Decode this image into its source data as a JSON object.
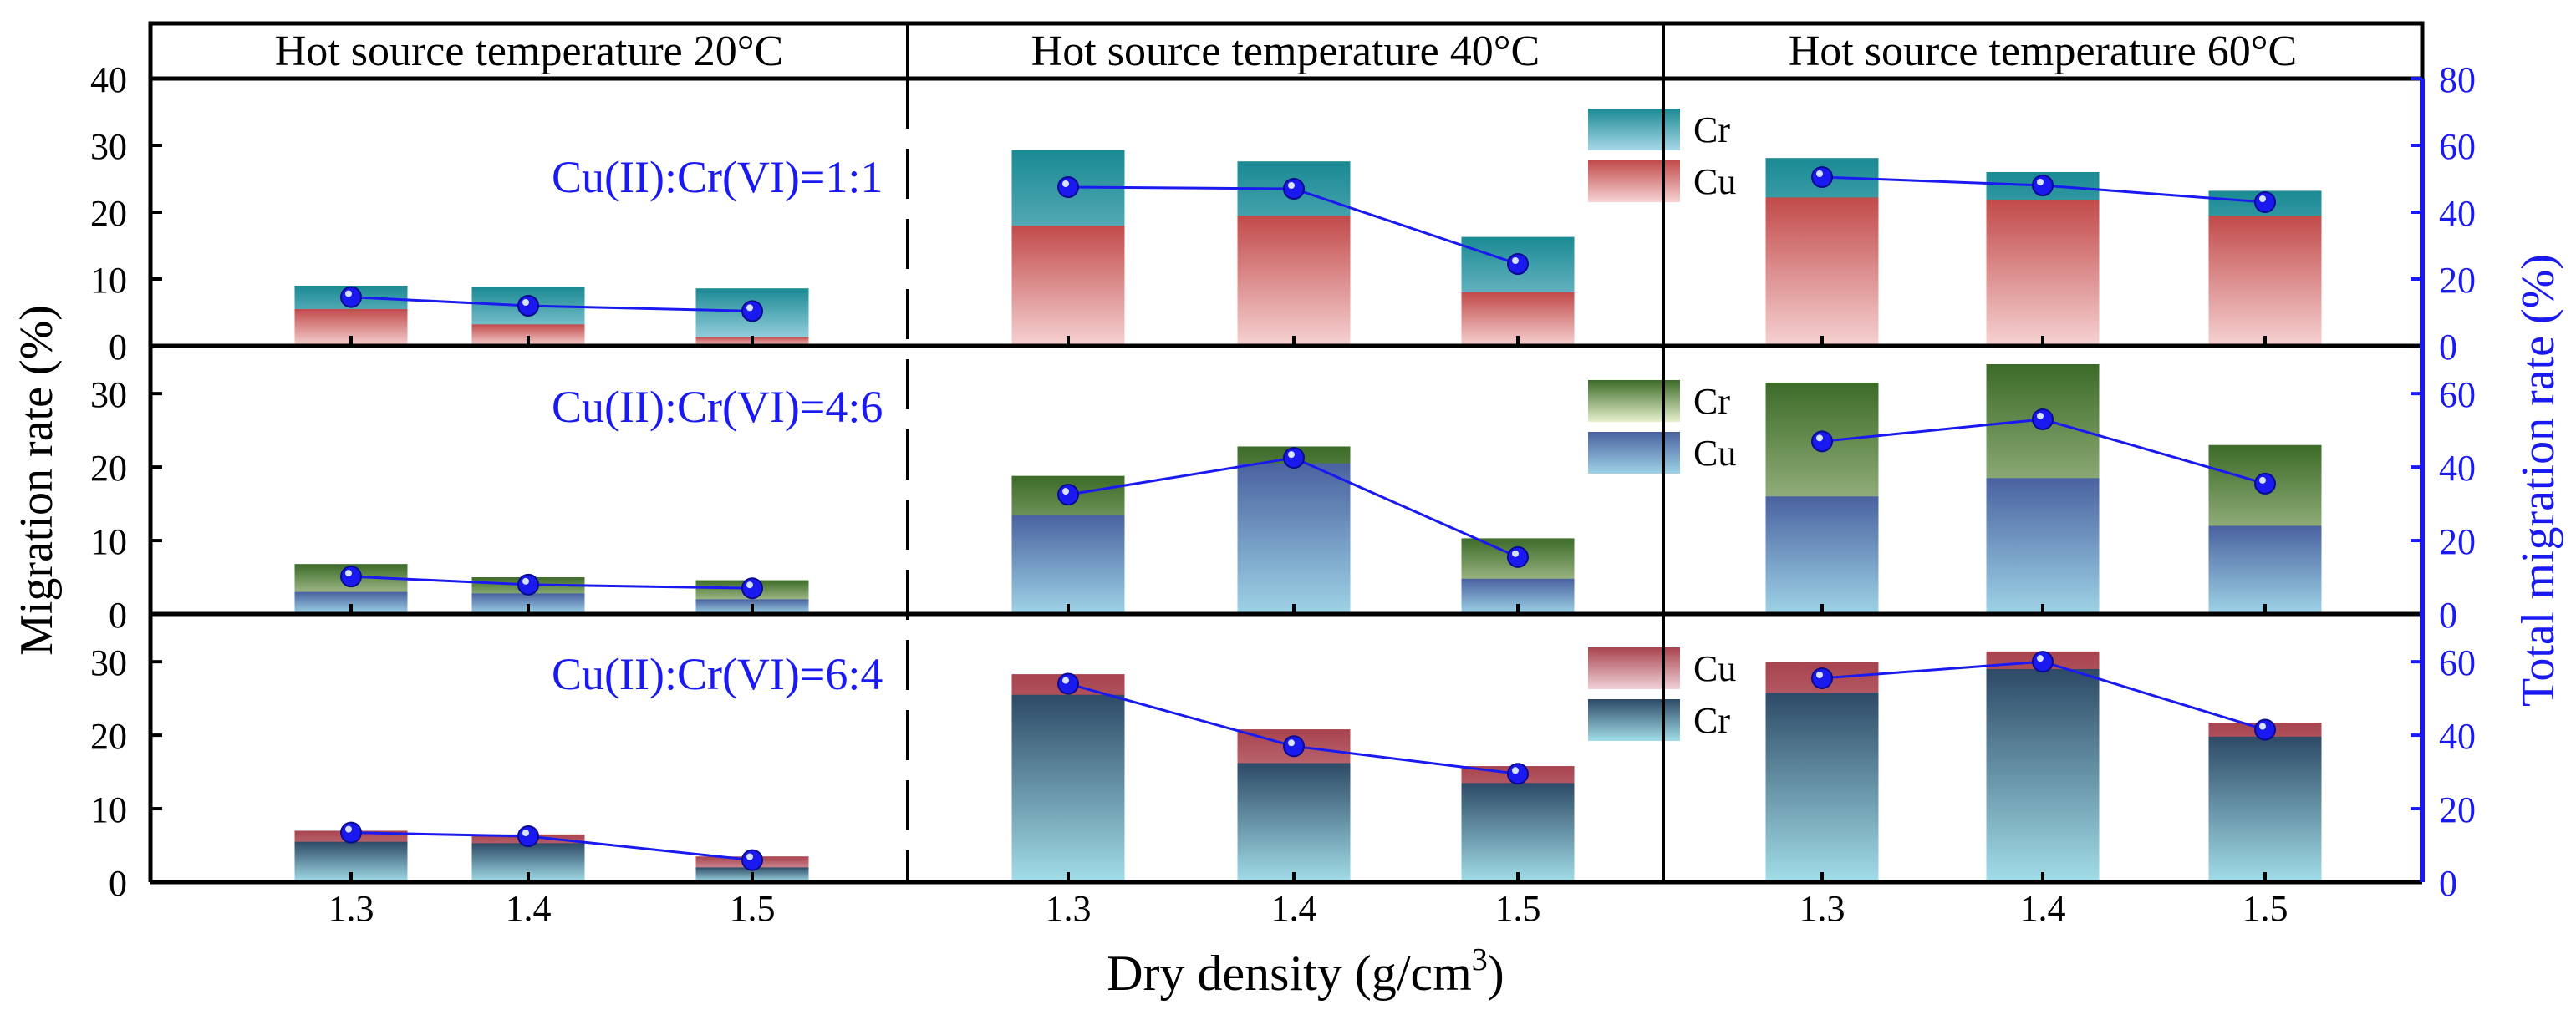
{
  "chart_data": {
    "type": "bar",
    "xlabel": "Dry density (g/cm",
    "xlabel_sup": "3",
    "xlabel_tail": ")",
    "ylabel": "Migration rate (%)",
    "ylabel_right": "Total migration rate (%)",
    "temperatures": [
      "Hot source temperature 20°C",
      "Hot source temperature 40°C",
      "Hot source temperature 60°C"
    ],
    "categories": [
      "1.3",
      "1.4",
      "1.5"
    ],
    "left_ticks": [
      [
        "0",
        "10",
        "20",
        "30",
        "40"
      ],
      [
        "0",
        "10",
        "20",
        "30"
      ],
      [
        "0",
        "10",
        "20",
        "30"
      ]
    ],
    "right_ticks": [
      "0",
      "20",
      "40",
      "60",
      "80"
    ],
    "ylim_left": [
      0,
      40
    ],
    "ylim_right": [
      0,
      80
    ],
    "rows": [
      {
        "ratio_label": "Cu(II):Cr(VI)=1:1",
        "legend": [
          "Cr",
          "Cu"
        ],
        "top_series": "Cr",
        "bottom_series": "Cu",
        "top_colors": [
          "#1a8a93",
          "#a8d8e8"
        ],
        "bottom_colors": [
          "#c24a4a",
          "#f6d2d2"
        ],
        "groups": [
          {
            "top": [
              9.0,
              8.8,
              8.6
            ],
            "bottom": [
              5.5,
              3.2,
              1.3
            ],
            "total": [
              14.6,
              12.0,
              10.4
            ]
          },
          {
            "top": [
              29.3,
              27.6,
              16.3
            ],
            "bottom": [
              18.0,
              19.5,
              8.0
            ],
            "total": [
              47.5,
              47.0,
              24.5
            ]
          },
          {
            "top": [
              28.1,
              26.0,
              23.2
            ],
            "bottom": [
              22.2,
              21.8,
              19.5
            ],
            "total": [
              50.5,
              48.0,
              43.0
            ]
          }
        ]
      },
      {
        "ratio_label": "Cu(II):Cr(VI)=4:6",
        "legend": [
          "Cr",
          "Cu"
        ],
        "top_series": "Cr",
        "bottom_series": "Cu",
        "top_colors": [
          "#3c6b28",
          "#e6f0cc"
        ],
        "bottom_colors": [
          "#4a62a0",
          "#9ed3e6"
        ],
        "groups": [
          {
            "top": [
              6.8,
              5.0,
              4.6
            ],
            "bottom": [
              3.0,
              2.8,
              2.0
            ],
            "total": [
              10.2,
              8.0,
              7.0
            ]
          },
          {
            "top": [
              18.8,
              22.8,
              10.3
            ],
            "bottom": [
              13.5,
              20.5,
              4.8
            ],
            "total": [
              32.5,
              42.5,
              15.5
            ]
          },
          {
            "top": [
              31.5,
              34.0,
              23.0
            ],
            "bottom": [
              16.0,
              18.5,
              12.0
            ],
            "total": [
              47.0,
              53.0,
              35.5
            ]
          }
        ]
      },
      {
        "ratio_label": "Cu(II):Cr(VI)=6:4",
        "legend": [
          "Cu",
          "Cr"
        ],
        "top_series": "Cu",
        "bottom_series": "Cr",
        "top_colors": [
          "#a8434e",
          "#f0d2d8"
        ],
        "bottom_colors": [
          "#2d4a66",
          "#a2dde8"
        ],
        "groups": [
          {
            "top": [
              7.0,
              6.5,
              3.5
            ],
            "bottom": [
              5.5,
              5.3,
              2.0
            ],
            "total": [
              13.5,
              12.5,
              6.0
            ]
          },
          {
            "top": [
              28.3,
              20.8,
              15.8
            ],
            "bottom": [
              25.5,
              16.2,
              13.5
            ],
            "total": [
              54.0,
              37.0,
              29.5
            ]
          },
          {
            "top": [
              30.0,
              31.4,
              21.7
            ],
            "bottom": [
              25.8,
              29.0,
              19.8
            ],
            "total": [
              55.5,
              60.0,
              41.5
            ]
          }
        ]
      }
    ]
  }
}
